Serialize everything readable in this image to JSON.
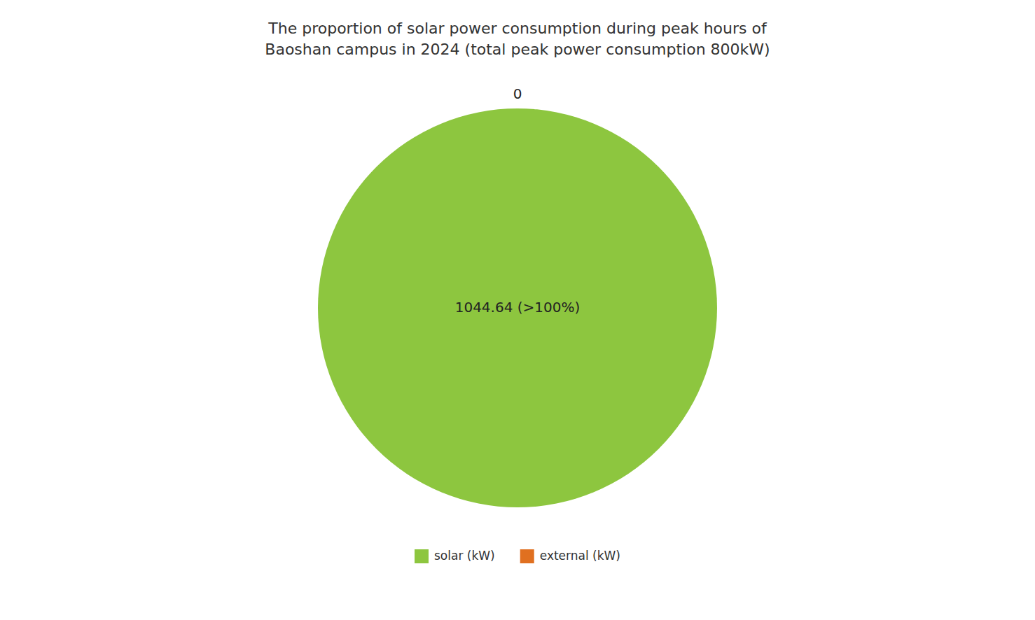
{
  "chart_data": {
    "type": "pie",
    "title": "The proportion of solar power consumption during peak hours of\nBaoshan campus in 2024 (total peak power consumption 800kW)",
    "categories": [
      "solar (kW)",
      "external (kW)"
    ],
    "values": [
      1044.64,
      0
    ],
    "value_labels": [
      "1044.64 (>100%)",
      "0"
    ],
    "colors": [
      "#8dc63f",
      "#e07020"
    ],
    "data_labels": true,
    "legend": "bottom"
  }
}
